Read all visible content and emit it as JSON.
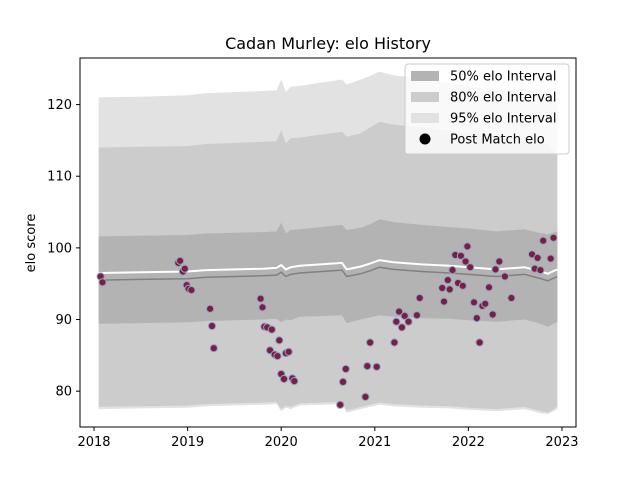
{
  "chart_data": {
    "type": "area",
    "title": "Cadan Murley: elo History",
    "xlabel": "",
    "ylabel": "elo score",
    "xlim": [
      2017.85,
      2023.15
    ],
    "ylim": [
      75,
      126.5
    ],
    "x_ticks": [
      2018,
      2019,
      2020,
      2021,
      2022,
      2023
    ],
    "x_tick_labels": [
      "2018",
      "2019",
      "2020",
      "2021",
      "2022",
      "2023"
    ],
    "y_ticks": [
      80,
      90,
      100,
      110,
      120
    ],
    "y_tick_labels": [
      "80",
      "90",
      "100",
      "110",
      "120"
    ],
    "grid": false,
    "legend_position": "top-right",
    "legend": [
      {
        "label": "50% elo Interval",
        "color": "#b3b3b3",
        "kind": "patch"
      },
      {
        "label": "80% elo Interval",
        "color": "#cccccc",
        "kind": "patch"
      },
      {
        "label": "95% elo Interval",
        "color": "#e2e2e2",
        "kind": "patch"
      },
      {
        "label": "Post Match elo",
        "color": "#000000",
        "kind": "marker"
      }
    ],
    "mean_color": "#808080",
    "mean_line": {
      "x": [
        2018.05,
        2018.5,
        2019.0,
        2019.2,
        2019.8,
        2019.95,
        2020.0,
        2020.05,
        2020.1,
        2020.2,
        2020.65,
        2020.7,
        2020.85,
        2020.95,
        2021.05,
        2021.2,
        2021.5,
        2021.8,
        2022.0,
        2022.3,
        2022.6,
        2022.75,
        2022.85,
        2022.95
      ],
      "y": [
        95.5,
        95.6,
        95.7,
        95.9,
        96.1,
        96.2,
        96.6,
        96.0,
        96.3,
        96.5,
        96.9,
        96.0,
        96.4,
        96.8,
        97.3,
        97.0,
        96.7,
        96.5,
        96.3,
        96.0,
        96.3,
        95.8,
        95.4,
        96.0
      ]
    },
    "series": [
      {
        "name": "50% elo Interval",
        "x": [
          2018.05,
          2018.5,
          2019.0,
          2019.2,
          2019.8,
          2019.95,
          2020.0,
          2020.05,
          2020.1,
          2020.2,
          2020.65,
          2020.7,
          2020.85,
          2020.95,
          2021.05,
          2021.2,
          2021.5,
          2021.8,
          2022.0,
          2022.3,
          2022.6,
          2022.75,
          2022.85,
          2022.95
        ],
        "upper": [
          101.6,
          101.7,
          101.8,
          102.0,
          102.2,
          102.3,
          103.5,
          102.0,
          102.5,
          102.6,
          103.2,
          102.5,
          102.8,
          103.3,
          104.0,
          103.6,
          103.2,
          102.9,
          102.7,
          102.3,
          102.6,
          102.1,
          101.9,
          102.3
        ],
        "lower": [
          89.4,
          89.5,
          89.6,
          89.8,
          90.0,
          90.1,
          89.6,
          90.0,
          89.9,
          90.4,
          90.6,
          89.5,
          90.0,
          90.3,
          90.6,
          90.4,
          90.2,
          90.1,
          89.9,
          89.7,
          90.0,
          89.5,
          89.0,
          89.7
        ]
      },
      {
        "name": "80% elo Interval",
        "x": [
          2018.05,
          2018.5,
          2019.0,
          2019.2,
          2019.8,
          2019.95,
          2020.0,
          2020.05,
          2020.1,
          2020.2,
          2020.65,
          2020.7,
          2020.85,
          2020.95,
          2021.05,
          2021.2,
          2021.5,
          2021.8,
          2022.0,
          2022.3,
          2022.6,
          2022.75,
          2022.85,
          2022.95
        ],
        "upper": [
          114.0,
          114.1,
          114.2,
          114.5,
          114.8,
          114.9,
          116.4,
          114.6,
          115.3,
          115.4,
          116.2,
          115.5,
          116.0,
          116.8,
          117.6,
          117.2,
          116.8,
          116.4,
          116.0,
          115.5,
          115.6,
          115.0,
          114.5,
          113.0
        ],
        "lower": [
          77.8,
          77.9,
          78.0,
          78.2,
          78.4,
          78.5,
          77.5,
          78.0,
          77.8,
          78.3,
          78.5,
          77.3,
          77.8,
          78.1,
          78.4,
          78.2,
          78.0,
          77.9,
          77.7,
          77.5,
          77.8,
          77.3,
          77.0,
          77.8
        ]
      },
      {
        "name": "95% elo Interval",
        "x": [
          2018.05,
          2018.5,
          2019.0,
          2019.2,
          2019.8,
          2019.95,
          2020.0,
          2020.05,
          2020.1,
          2020.2,
          2020.65,
          2020.7,
          2020.85,
          2020.95,
          2021.05,
          2021.2,
          2021.5,
          2021.8,
          2022.0,
          2022.3,
          2022.6,
          2022.75,
          2022.85,
          2022.95
        ],
        "upper": [
          121.0,
          121.1,
          121.3,
          121.6,
          121.9,
          122.0,
          123.5,
          121.8,
          122.5,
          122.6,
          123.5,
          122.8,
          123.5,
          124.0,
          124.6,
          124.1,
          123.6,
          123.0,
          122.6,
          122.0,
          122.2,
          121.5,
          121.0,
          120.4
        ],
        "lower": [
          77.5,
          77.6,
          77.7,
          77.9,
          78.1,
          78.2,
          77.2,
          77.7,
          77.5,
          78.0,
          78.2,
          77.0,
          77.5,
          77.8,
          78.1,
          77.9,
          77.7,
          77.6,
          77.4,
          77.2,
          77.5,
          77.0,
          76.8,
          77.5
        ]
      },
      {
        "name": "Post Match elo",
        "point_color": "#7b1e3f",
        "point_edge": "#8fa3c8",
        "x": [
          2018.07,
          2018.09,
          2018.9,
          2018.92,
          2018.95,
          2018.97,
          2018.99,
          2019.01,
          2019.04,
          2019.24,
          2019.26,
          2019.28,
          2019.78,
          2019.8,
          2019.82,
          2019.85,
          2019.88,
          2019.9,
          2019.93,
          2019.96,
          2019.98,
          2020.0,
          2020.03,
          2020.05,
          2020.08,
          2020.12,
          2020.14,
          2020.63,
          2020.66,
          2020.69,
          2020.9,
          2020.92,
          2020.95,
          2021.02,
          2021.21,
          2021.23,
          2021.26,
          2021.29,
          2021.32,
          2021.36,
          2021.45,
          2021.48,
          2021.72,
          2021.74,
          2021.78,
          2021.8,
          2021.83,
          2021.86,
          2021.89,
          2021.92,
          2021.94,
          2021.97,
          2021.99,
          2022.02,
          2022.06,
          2022.09,
          2022.12,
          2022.15,
          2022.18,
          2022.22,
          2022.26,
          2022.29,
          2022.33,
          2022.39,
          2022.46,
          2022.68,
          2022.71,
          2022.74,
          2022.77,
          2022.8,
          2022.88,
          2022.91
        ],
        "y": [
          96.0,
          95.2,
          97.9,
          98.2,
          96.7,
          97.1,
          94.8,
          94.3,
          94.1,
          91.5,
          89.1,
          86.0,
          92.9,
          91.7,
          89.0,
          88.9,
          85.7,
          88.6,
          85.1,
          84.9,
          87.1,
          82.4,
          81.7,
          85.3,
          85.5,
          81.8,
          81.4,
          78.1,
          81.3,
          83.1,
          79.2,
          83.5,
          86.8,
          83.4,
          86.8,
          89.7,
          91.1,
          88.9,
          90.5,
          89.7,
          90.6,
          93.0,
          94.4,
          92.5,
          95.5,
          94.2,
          96.9,
          99.0,
          95.1,
          98.9,
          94.7,
          98.1,
          100.2,
          97.3,
          92.4,
          90.2,
          86.8,
          91.9,
          92.2,
          94.5,
          90.7,
          97.0,
          98.1,
          96.0,
          93.0,
          99.1,
          97.1,
          98.6,
          96.9,
          101.0,
          98.5,
          101.4
        ]
      }
    ]
  }
}
